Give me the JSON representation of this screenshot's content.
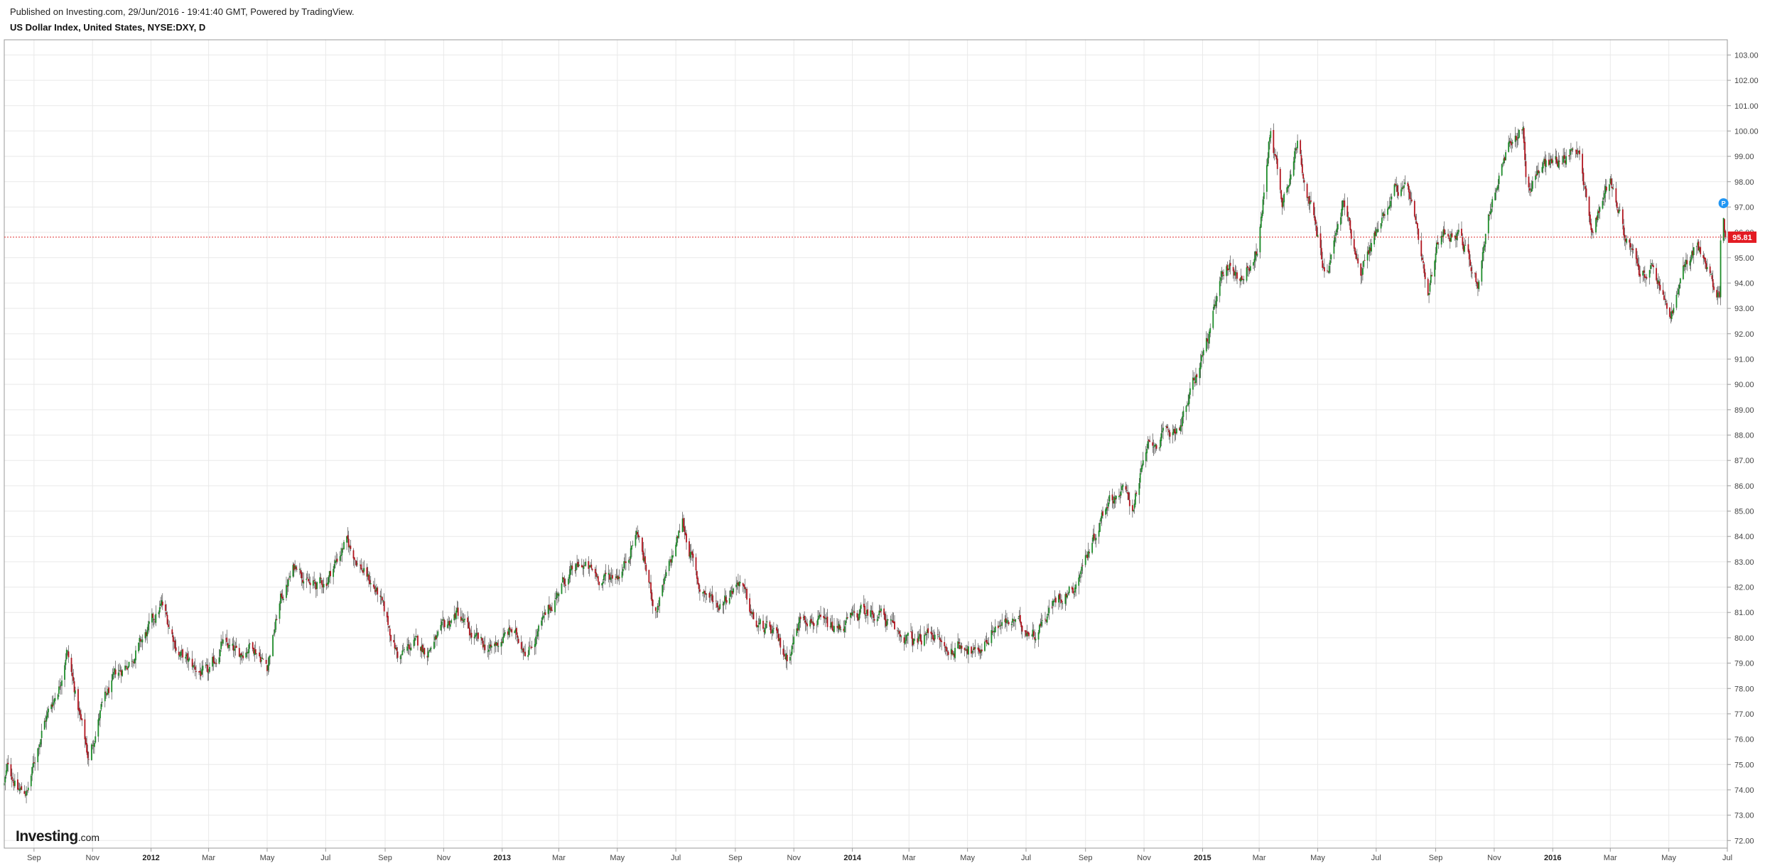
{
  "header": {
    "published": "Published on Investing.com, 29/Jun/2016 - 19:41:40 GMT, Powered by TradingView.",
    "symbol": "US Dollar Index, United States, NYSE:DXY, D"
  },
  "logo": {
    "brand": "Investing",
    "tld": ".com"
  },
  "colors": {
    "up": "#1e8c2a",
    "down": "#b1151f",
    "grid": "#e9e9e9",
    "price_line": "#e03030",
    "price_badge": "#e31b23",
    "marker": "#2196f3"
  },
  "chart_data": {
    "type": "candlestick",
    "title": "US Dollar Index, United States, NYSE:DXY, D",
    "interval": "D",
    "x_range": [
      "2011-08-01",
      "2016-07-01"
    ],
    "ylim": [
      71.7,
      103.6
    ],
    "y_ticks": [
      "72.00",
      "73.00",
      "74.00",
      "75.00",
      "76.00",
      "77.00",
      "78.00",
      "79.00",
      "80.00",
      "81.00",
      "82.00",
      "83.00",
      "84.00",
      "85.00",
      "86.00",
      "87.00",
      "88.00",
      "89.00",
      "90.00",
      "91.00",
      "92.00",
      "93.00",
      "94.00",
      "95.00",
      "96.00",
      "97.00",
      "98.00",
      "99.00",
      "100.00",
      "101.00",
      "102.00",
      "103.00"
    ],
    "x_ticks": [
      {
        "date": "2011-09-01",
        "label": "Sep",
        "year": false
      },
      {
        "date": "2011-11-01",
        "label": "Nov",
        "year": false
      },
      {
        "date": "2012-01-01",
        "label": "2012",
        "year": true
      },
      {
        "date": "2012-03-01",
        "label": "Mar",
        "year": false
      },
      {
        "date": "2012-05-01",
        "label": "May",
        "year": false
      },
      {
        "date": "2012-07-01",
        "label": "Jul",
        "year": false
      },
      {
        "date": "2012-09-01",
        "label": "Sep",
        "year": false
      },
      {
        "date": "2012-11-01",
        "label": "Nov",
        "year": false
      },
      {
        "date": "2013-01-01",
        "label": "2013",
        "year": true
      },
      {
        "date": "2013-03-01",
        "label": "Mar",
        "year": false
      },
      {
        "date": "2013-05-01",
        "label": "May",
        "year": false
      },
      {
        "date": "2013-07-01",
        "label": "Jul",
        "year": false
      },
      {
        "date": "2013-09-01",
        "label": "Sep",
        "year": false
      },
      {
        "date": "2013-11-01",
        "label": "Nov",
        "year": false
      },
      {
        "date": "2014-01-01",
        "label": "2014",
        "year": true
      },
      {
        "date": "2014-03-01",
        "label": "Mar",
        "year": false
      },
      {
        "date": "2014-05-01",
        "label": "May",
        "year": false
      },
      {
        "date": "2014-07-01",
        "label": "Jul",
        "year": false
      },
      {
        "date": "2014-09-01",
        "label": "Sep",
        "year": false
      },
      {
        "date": "2014-11-01",
        "label": "Nov",
        "year": false
      },
      {
        "date": "2015-01-01",
        "label": "2015",
        "year": true
      },
      {
        "date": "2015-03-01",
        "label": "Mar",
        "year": false
      },
      {
        "date": "2015-05-01",
        "label": "May",
        "year": false
      },
      {
        "date": "2015-07-01",
        "label": "Jul",
        "year": false
      },
      {
        "date": "2015-09-01",
        "label": "Sep",
        "year": false
      },
      {
        "date": "2015-11-01",
        "label": "Nov",
        "year": false
      },
      {
        "date": "2016-01-01",
        "label": "2016",
        "year": true
      },
      {
        "date": "2016-03-01",
        "label": "Mar",
        "year": false
      },
      {
        "date": "2016-05-01",
        "label": "May",
        "year": false
      },
      {
        "date": "2016-07-01",
        "label": "Jul",
        "year": false
      }
    ],
    "close_path": [
      [
        "2011-08-01",
        74.2
      ],
      [
        "2011-08-05",
        75.0
      ],
      [
        "2011-08-15",
        74.0
      ],
      [
        "2011-08-25",
        73.9
      ],
      [
        "2011-09-10",
        76.5
      ],
      [
        "2011-09-28",
        78.2
      ],
      [
        "2011-10-05",
        79.6
      ],
      [
        "2011-10-15",
        77.6
      ],
      [
        "2011-10-28",
        75.2
      ],
      [
        "2011-11-10",
        77.2
      ],
      [
        "2011-11-25",
        78.5
      ],
      [
        "2011-12-10",
        79.1
      ],
      [
        "2011-12-28",
        80.2
      ],
      [
        "2012-01-12",
        81.3
      ],
      [
        "2012-01-30",
        79.4
      ],
      [
        "2012-02-15",
        78.8
      ],
      [
        "2012-03-01",
        78.5
      ],
      [
        "2012-03-15",
        79.8
      ],
      [
        "2012-04-01",
        79.3
      ],
      [
        "2012-04-15",
        79.8
      ],
      [
        "2012-05-01",
        78.9
      ],
      [
        "2012-05-15",
        81.5
      ],
      [
        "2012-06-01",
        83.0
      ],
      [
        "2012-06-15",
        82.0
      ],
      [
        "2012-07-01",
        82.2
      ],
      [
        "2012-07-22",
        83.8
      ],
      [
        "2012-08-10",
        82.6
      ],
      [
        "2012-08-25",
        81.7
      ],
      [
        "2012-09-15",
        79.2
      ],
      [
        "2012-10-01",
        79.8
      ],
      [
        "2012-10-15",
        79.5
      ],
      [
        "2012-11-15",
        81.0
      ],
      [
        "2012-12-01",
        80.0
      ],
      [
        "2012-12-20",
        79.5
      ],
      [
        "2013-01-10",
        80.3
      ],
      [
        "2013-01-28",
        79.5
      ],
      [
        "2013-02-15",
        80.8
      ],
      [
        "2013-03-05",
        82.2
      ],
      [
        "2013-03-25",
        82.9
      ],
      [
        "2013-04-15",
        82.3
      ],
      [
        "2013-05-05",
        82.6
      ],
      [
        "2013-05-22",
        84.2
      ],
      [
        "2013-06-10",
        81.0
      ],
      [
        "2013-06-25",
        82.9
      ],
      [
        "2013-07-08",
        84.6
      ],
      [
        "2013-07-25",
        82.0
      ],
      [
        "2013-08-15",
        81.3
      ],
      [
        "2013-09-05",
        82.3
      ],
      [
        "2013-09-22",
        80.5
      ],
      [
        "2013-10-10",
        80.2
      ],
      [
        "2013-10-25",
        79.2
      ],
      [
        "2013-11-10",
        81.0
      ],
      [
        "2013-11-25",
        80.6
      ],
      [
        "2013-12-15",
        80.3
      ],
      [
        "2014-01-10",
        81.0
      ],
      [
        "2014-01-30",
        81.0
      ],
      [
        "2014-02-15",
        80.2
      ],
      [
        "2014-03-10",
        79.8
      ],
      [
        "2014-03-25",
        80.3
      ],
      [
        "2014-04-10",
        79.4
      ],
      [
        "2014-04-28",
        79.8
      ],
      [
        "2014-05-10",
        79.3
      ],
      [
        "2014-05-30",
        80.5
      ],
      [
        "2014-06-20",
        80.6
      ],
      [
        "2014-07-10",
        80.2
      ],
      [
        "2014-08-01",
        81.5
      ],
      [
        "2014-08-20",
        82.0
      ],
      [
        "2014-09-10",
        84.0
      ],
      [
        "2014-09-25",
        85.5
      ],
      [
        "2014-10-10",
        85.8
      ],
      [
        "2014-10-20",
        85.2
      ],
      [
        "2014-11-05",
        87.5
      ],
      [
        "2014-11-25",
        88.0
      ],
      [
        "2014-12-10",
        88.5
      ],
      [
        "2014-12-20",
        89.7
      ],
      [
        "2015-01-08",
        92.0
      ],
      [
        "2015-01-25",
        94.8
      ],
      [
        "2015-02-10",
        94.2
      ],
      [
        "2015-02-28",
        95.3
      ],
      [
        "2015-03-13",
        100.2
      ],
      [
        "2015-03-25",
        97.2
      ],
      [
        "2015-04-10",
        99.5
      ],
      [
        "2015-04-25",
        96.8
      ],
      [
        "2015-05-10",
        94.2
      ],
      [
        "2015-05-28",
        97.2
      ],
      [
        "2015-06-15",
        94.5
      ],
      [
        "2015-07-01",
        96.0
      ],
      [
        "2015-07-20",
        97.8
      ],
      [
        "2015-08-05",
        97.5
      ],
      [
        "2015-08-24",
        93.3
      ],
      [
        "2015-09-05",
        96.0
      ],
      [
        "2015-09-25",
        96.0
      ],
      [
        "2015-10-15",
        94.0
      ],
      [
        "2015-10-28",
        97.0
      ],
      [
        "2015-11-15",
        99.2
      ],
      [
        "2015-12-01",
        100.2
      ],
      [
        "2015-12-05",
        97.6
      ],
      [
        "2015-12-20",
        98.6
      ],
      [
        "2016-01-15",
        99.0
      ],
      [
        "2016-01-28",
        99.4
      ],
      [
        "2016-02-10",
        96.0
      ],
      [
        "2016-03-01",
        98.2
      ],
      [
        "2016-03-15",
        96.0
      ],
      [
        "2016-04-01",
        94.3
      ],
      [
        "2016-04-15",
        94.5
      ],
      [
        "2016-05-03",
        92.6
      ],
      [
        "2016-05-15",
        94.3
      ],
      [
        "2016-05-30",
        95.6
      ],
      [
        "2016-06-15",
        94.0
      ],
      [
        "2016-06-23",
        93.6
      ],
      [
        "2016-06-24",
        95.6
      ],
      [
        "2016-06-27",
        96.4
      ],
      [
        "2016-06-29",
        95.81
      ]
    ],
    "last_price": "95.81",
    "markers": [
      {
        "date": "2016-06-27",
        "value": 97.15,
        "label": "P"
      }
    ]
  }
}
